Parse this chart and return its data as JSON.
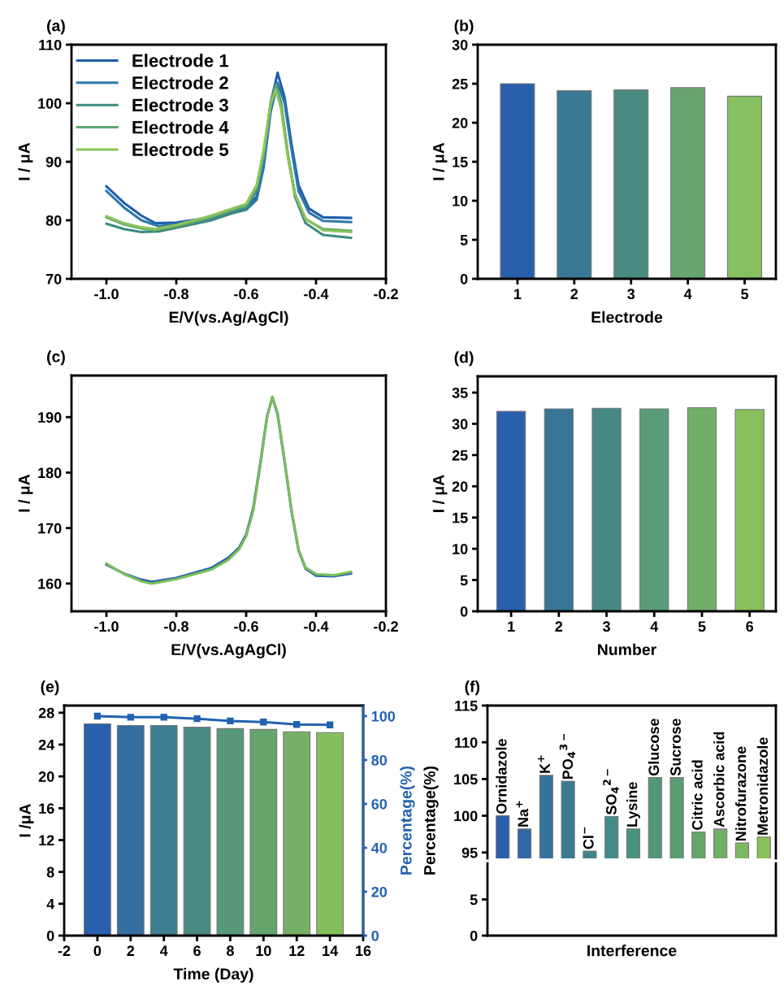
{
  "chart_data": [
    {
      "type": "line",
      "title": "(a)",
      "xlabel": "E/V(vs.Ag/AgCl)",
      "ylabel": "I / μA",
      "xlim": [
        -1.1,
        -0.2
      ],
      "xticks": [
        {
          "value": -1.0,
          "label": "-1.0"
        },
        -0.8,
        -0.6,
        -0.4,
        -0.2
      ],
      "ylim": [
        70,
        110
      ],
      "yticks": [
        70,
        80,
        90,
        100,
        110
      ],
      "legend": "top left",
      "grid": false,
      "series": [
        {
          "name": "Electrode 1",
          "color": "#1f5fae",
          "x": [
            -1.0,
            -0.95,
            -0.9,
            -0.86,
            -0.8,
            -0.7,
            -0.6,
            -0.57,
            -0.55,
            -0.53,
            -0.51,
            -0.49,
            -0.47,
            -0.45,
            -0.42,
            -0.38,
            -0.3
          ],
          "values": [
            85.8,
            83.0,
            80.8,
            79.5,
            79.6,
            80.5,
            82.0,
            84.0,
            90.0,
            100.0,
            105.2,
            101.0,
            93.0,
            86.0,
            82.0,
            80.5,
            80.4
          ]
        },
        {
          "name": "Electrode 2",
          "color": "#2b78a8",
          "x": [
            -1.0,
            -0.95,
            -0.9,
            -0.85,
            -0.8,
            -0.7,
            -0.6,
            -0.57,
            -0.55,
            -0.53,
            -0.51,
            -0.49,
            -0.47,
            -0.45,
            -0.42,
            -0.38,
            -0.3
          ],
          "values": [
            85.0,
            82.2,
            80.0,
            79.0,
            79.3,
            80.3,
            81.8,
            83.5,
            89.0,
            98.5,
            103.5,
            100.0,
            92.0,
            85.0,
            81.3,
            79.9,
            79.7
          ]
        },
        {
          "name": "Electrode 3",
          "color": "#3c8a80",
          "x": [
            -1.0,
            -0.95,
            -0.9,
            -0.85,
            -0.8,
            -0.7,
            -0.6,
            -0.57,
            -0.55,
            -0.53,
            -0.515,
            -0.5,
            -0.48,
            -0.46,
            -0.43,
            -0.38,
            -0.3
          ],
          "values": [
            79.4,
            78.5,
            78.0,
            78.1,
            78.7,
            80.0,
            82.0,
            85.0,
            91.0,
            100.0,
            103.3,
            100.0,
            91.0,
            84.0,
            79.5,
            77.5,
            77.0
          ]
        },
        {
          "name": "Electrode 4",
          "color": "#5ea66e",
          "x": [
            -1.0,
            -0.95,
            -0.9,
            -0.86,
            -0.8,
            -0.7,
            -0.6,
            -0.57,
            -0.55,
            -0.53,
            -0.515,
            -0.5,
            -0.48,
            -0.46,
            -0.43,
            -0.38,
            -0.3
          ],
          "values": [
            80.5,
            79.3,
            78.6,
            78.3,
            79.0,
            80.5,
            82.5,
            85.5,
            91.0,
            99.5,
            103.0,
            99.5,
            91.0,
            84.5,
            80.2,
            78.5,
            78.2
          ]
        },
        {
          "name": "Electrode 5",
          "color": "#8cc45a",
          "x": [
            -1.0,
            -0.95,
            -0.9,
            -0.86,
            -0.8,
            -0.7,
            -0.6,
            -0.57,
            -0.55,
            -0.53,
            -0.515,
            -0.5,
            -0.48,
            -0.46,
            -0.43,
            -0.38,
            -0.3
          ],
          "values": [
            80.7,
            79.5,
            78.8,
            78.5,
            79.2,
            80.8,
            82.8,
            86.0,
            92.0,
            100.0,
            102.3,
            99.0,
            90.5,
            84.5,
            80.3,
            78.3,
            78.0
          ]
        }
      ]
    },
    {
      "type": "bar",
      "title": "(b)",
      "xlabel": "Electrode",
      "ylabel": "I / μA",
      "categories": [
        "1",
        "2",
        "3",
        "4",
        "5"
      ],
      "values": [
        25.0,
        24.1,
        24.2,
        24.5,
        23.4
      ],
      "colors": [
        "#2a5fae",
        "#3b7896",
        "#4a8a80",
        "#68a472",
        "#86c060"
      ],
      "ylim": [
        0,
        30
      ],
      "yticks": [
        0,
        5,
        10,
        15,
        20,
        25,
        30
      ],
      "grid": false
    },
    {
      "type": "line",
      "title": "(c)",
      "xlabel": "E/V(vs.AgAgCl)",
      "ylabel": "I / μA",
      "xlim": [
        -1.1,
        -0.2
      ],
      "xticks": [
        {
          "value": -1.0,
          "label": "-1.0"
        },
        -0.8,
        -0.6,
        -0.4,
        -0.2
      ],
      "ylim": [
        155,
        197.5
      ],
      "yticks": [
        160,
        170,
        180,
        190
      ],
      "grid": false,
      "series": [
        {
          "color": "#2a62ae",
          "x": [
            -1.0,
            -0.95,
            -0.9,
            -0.87,
            -0.8,
            -0.7,
            -0.65,
            -0.62,
            -0.6,
            -0.58,
            -0.56,
            -0.54,
            -0.525,
            -0.51,
            -0.49,
            -0.47,
            -0.45,
            -0.43,
            -0.4,
            -0.35,
            -0.3
          ],
          "values": [
            163.4,
            161.8,
            160.7,
            160.3,
            161.0,
            162.8,
            164.7,
            166.5,
            168.8,
            173.5,
            181.5,
            190.2,
            193.6,
            190.5,
            182.0,
            173.0,
            166.0,
            162.7,
            161.4,
            161.3,
            161.8
          ]
        },
        {
          "color": "#7cbf5a",
          "x": [
            -1.0,
            -0.95,
            -0.9,
            -0.87,
            -0.8,
            -0.7,
            -0.65,
            -0.62,
            -0.6,
            -0.58,
            -0.56,
            -0.54,
            -0.525,
            -0.51,
            -0.49,
            -0.47,
            -0.45,
            -0.43,
            -0.4,
            -0.35,
            -0.3
          ],
          "values": [
            163.6,
            161.7,
            160.4,
            160.0,
            160.8,
            162.5,
            164.3,
            166.2,
            168.5,
            173.0,
            181.0,
            190.0,
            193.7,
            190.8,
            182.3,
            173.2,
            166.2,
            162.9,
            161.7,
            161.5,
            162.1
          ]
        }
      ]
    },
    {
      "type": "bar",
      "title": "(d)",
      "xlabel": "Number",
      "ylabel": "I / μA",
      "categories": [
        "1",
        "2",
        "3",
        "4",
        "5",
        "6"
      ],
      "values": [
        32.0,
        32.4,
        32.5,
        32.4,
        32.6,
        32.3
      ],
      "colors": [
        "#2a5fae",
        "#387496",
        "#468884",
        "#5a9c78",
        "#72ae6a",
        "#88c05e"
      ],
      "ylim": [
        0,
        37.6
      ],
      "yticks": [
        0,
        5,
        10,
        15,
        20,
        25,
        30,
        35
      ],
      "grid": false
    },
    {
      "type": "bar",
      "title": "(e)",
      "xlabel": "Time (Day)",
      "ylabel": "I /μA",
      "y2label": "Percentage(%)",
      "x": [
        0,
        2,
        4,
        6,
        8,
        10,
        12,
        14
      ],
      "xlim": [
        -2,
        16
      ],
      "xticks": [
        -2,
        0,
        2,
        4,
        6,
        8,
        10,
        12,
        14,
        16
      ],
      "ylim": [
        0,
        28.9
      ],
      "yticks": [
        0,
        4,
        8,
        12,
        16,
        20,
        24,
        28
      ],
      "y2lim": [
        0,
        104.8
      ],
      "y2ticks": [
        0,
        20,
        40,
        60,
        80,
        100
      ],
      "grid": false,
      "series": [
        {
          "type": "bar",
          "values": [
            26.6,
            26.4,
            26.4,
            26.2,
            26.0,
            25.9,
            25.6,
            25.5
          ],
          "colors": [
            "#2a5fae",
            "#346e9e",
            "#3e7e90",
            "#488a82",
            "#569878",
            "#66a46e",
            "#76b064",
            "#86c05c"
          ]
        },
        {
          "type": "line",
          "axis": "y2",
          "marker": "square",
          "color": "#2262b0",
          "values": [
            100.0,
            99.5,
            99.5,
            98.8,
            97.8,
            97.3,
            96.2,
            96.0
          ]
        }
      ]
    },
    {
      "type": "bar",
      "title": "(f)",
      "xlabel": "Interference",
      "ylabel": "Percentage(%)",
      "categories": [
        "Ornidazole",
        "Na$^{+}$",
        "K$^{+}$",
        "PO$_{4}$$^{3−}$",
        "Cl$^{−}$",
        "SO$_{4}$$^{2−}$",
        "Lysine",
        "Glucose",
        "Sucrose",
        "Citric acid",
        "Ascorbic acid",
        "Nitrofurazone",
        "Metronidazole"
      ],
      "values": [
        100.0,
        98.2,
        105.5,
        104.7,
        95.2,
        99.9,
        98.2,
        105.2,
        105.2,
        97.8,
        98.2,
        96.3,
        97.1
      ],
      "colors": [
        "#2a5fae",
        "#2f68a6",
        "#34729e",
        "#397b96",
        "#3e848e",
        "#438b86",
        "#4a917e",
        "#529878",
        "#5a9e72",
        "#64a66c",
        "#70ae66",
        "#7cb860",
        "#88c05a"
      ],
      "ylim": [
        94.2,
        115
      ],
      "yticks": [
        95,
        100,
        105,
        110,
        115
      ],
      "tick_labels": "y",
      "grid": false
    },
    {
      "type": "bar",
      "categories": [
        null,
        null,
        null,
        null,
        null,
        null,
        null,
        null,
        null,
        null,
        null,
        null,
        null
      ],
      "values": [
        null,
        null,
        null,
        null,
        null,
        null,
        null,
        null,
        null,
        null,
        null,
        null,
        null
      ],
      "ylim": [
        0,
        10
      ],
      "yticks": [
        0,
        5
      ],
      "tick_labels": "y",
      "grid": false
    }
  ]
}
